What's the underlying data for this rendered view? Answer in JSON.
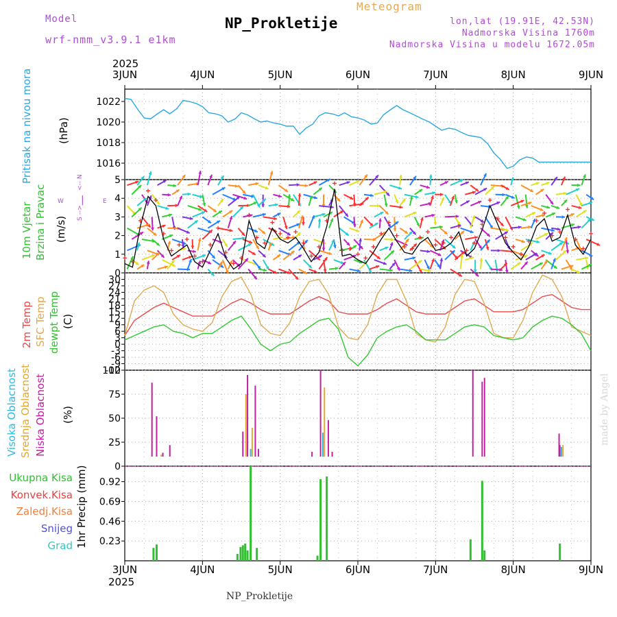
{
  "header": {
    "model_label": "Model",
    "model_name": "wrf-nmm_v3.9.1  e1km",
    "product": "Meteogram",
    "station": "NP_Prokletije",
    "lonlat": "lon,lat (19.91E, 42.53N)",
    "elevation": "Nadmorska Visina 1760m",
    "model_elevation": "Nadmorska Visina u modelu 1672.05m",
    "year_top": "2025",
    "year_bottom": "2025",
    "footer_station": "NP_Prokletije",
    "watermark": "made by Angel"
  },
  "colors": {
    "pressure": "#2aa8e0",
    "temp2m": "#e84a4a",
    "sfc_temp": "#e0a850",
    "dewpt": "#30c830",
    "high_cloud": "#30b8e0",
    "mid_cloud": "#e0a830",
    "low_cloud": "#c020a0",
    "total_precip": "#30c030",
    "conv_precip": "#e84040",
    "frozen": "#f08040",
    "snow": "#5050e0",
    "hail": "#30c8c0",
    "wind_speed": "#000000",
    "gust_marker": "#e83030"
  },
  "chart_data": [
    {
      "type": "line",
      "panel": "pressure",
      "ylabel_parts": [
        "Pritisak na nivou mora",
        "(hPa)"
      ],
      "x_ticks": [
        "3JUN",
        "4JUN",
        "5JUN",
        "6JUN",
        "7JUN",
        "8JUN",
        "9JUN"
      ],
      "xlim_days": [
        0,
        6
      ],
      "ylim": [
        1014.4,
        1023.2
      ],
      "yticks": [
        1016,
        1018,
        1020,
        1022
      ],
      "series": [
        {
          "name": "",
          "x": [
            0,
            0.08,
            0.17,
            0.25,
            0.33,
            0.42,
            0.5,
            0.58,
            0.67,
            0.75,
            0.83,
            0.92,
            1.0,
            1.08,
            1.17,
            1.25,
            1.33,
            1.42,
            1.5,
            1.58,
            1.67,
            1.75,
            1.83,
            1.92,
            2.0,
            2.08,
            2.17,
            2.25,
            2.33,
            2.42,
            2.5,
            2.58,
            2.67,
            2.75,
            2.83,
            2.92,
            3.0,
            3.08,
            3.17,
            3.25,
            3.33,
            3.42,
            3.5,
            3.58,
            3.67,
            3.75,
            3.83,
            3.92,
            4.0,
            4.08,
            4.17,
            4.25,
            4.33,
            4.42,
            4.5,
            4.58,
            4.67,
            4.75,
            4.83,
            4.92,
            5.0,
            5.08,
            5.17,
            5.25,
            5.33,
            5.42,
            5.5,
            5.58,
            5.67,
            5.75,
            5.83,
            5.92,
            6.0
          ],
          "y": [
            1022.3,
            1022.2,
            1021.2,
            1020.4,
            1020.3,
            1020.8,
            1021.2,
            1020.8,
            1021.3,
            1022.1,
            1022.0,
            1021.8,
            1021.5,
            1020.9,
            1020.8,
            1020.6,
            1020.0,
            1020.3,
            1020.9,
            1020.7,
            1020.3,
            1020.0,
            1020.1,
            1019.9,
            1019.8,
            1019.6,
            1019.6,
            1018.8,
            1019.4,
            1019.8,
            1020.6,
            1020.9,
            1020.8,
            1020.6,
            1020.9,
            1020.5,
            1020.4,
            1020.2,
            1019.8,
            1019.9,
            1020.7,
            1021.2,
            1021.6,
            1021.2,
            1020.9,
            1020.6,
            1020.3,
            1020.0,
            1019.6,
            1019.2,
            1019.4,
            1019.3,
            1019.0,
            1018.7,
            1018.6,
            1018.5,
            1017.9,
            1017.0,
            1016.4,
            1015.5,
            1015.7,
            1016.3,
            1016.6,
            1016.5,
            1016.1,
            1016.1,
            1016.1,
            1016.1,
            1016.1,
            1016.1,
            1016.1,
            1016.1,
            1016.1
          ]
        }
      ]
    },
    {
      "type": "line",
      "panel": "wind",
      "ylabel_parts": [
        "10m Vjetar",
        "Brzina i Pravac",
        "(m/s)"
      ],
      "compass": {
        "w": "W",
        "e": "E",
        "n": "<-- N",
        "s": "S -->",
        "pipe": "|"
      },
      "ylim": [
        0,
        5
      ],
      "yticks": [
        0,
        1,
        2,
        3,
        4,
        5
      ],
      "series": [
        {
          "name": "",
          "x": [
            0,
            0.1,
            0.2,
            0.3,
            0.4,
            0.5,
            0.6,
            0.7,
            0.8,
            0.9,
            1.0,
            1.1,
            1.2,
            1.3,
            1.4,
            1.5,
            1.6,
            1.7,
            1.8,
            1.9,
            2.0,
            2.1,
            2.2,
            2.3,
            2.4,
            2.5,
            2.6,
            2.7,
            2.8,
            2.9,
            3.0,
            3.1,
            3.2,
            3.3,
            3.4,
            3.5,
            3.6,
            3.7,
            3.8,
            3.9,
            4.0,
            4.1,
            4.2,
            4.3,
            4.4,
            4.5,
            4.6,
            4.7,
            4.8,
            4.9,
            5.0,
            5.1,
            5.2,
            5.3,
            5.4,
            5.5,
            5.6,
            5.7,
            5.8,
            5.9,
            6.0
          ],
          "y": [
            0.5,
            0.3,
            2.5,
            4.1,
            3.6,
            1.8,
            0.9,
            1.2,
            1.5,
            0.6,
            0.3,
            1.2,
            2.1,
            0.8,
            0.2,
            0.5,
            2.8,
            1.6,
            1.3,
            2.4,
            1.8,
            1.6,
            1.9,
            1.3,
            0.6,
            1.1,
            2.5,
            4.5,
            0.9,
            1.0,
            0.7,
            0.5,
            1.1,
            1.8,
            2.4,
            1.7,
            1.1,
            1.0,
            1.6,
            1.9,
            1.2,
            1.3,
            1.6,
            2.2,
            0.9,
            1.3,
            2.3,
            3.6,
            2.6,
            1.6,
            1.1,
            0.7,
            1.4,
            2.5,
            2.9,
            1.7,
            1.9,
            3.1,
            1.5,
            1.0,
            1.8
          ]
        }
      ]
    },
    {
      "type": "line",
      "panel": "temperature",
      "ylabel_parts": [
        "2m Temp",
        "SFC Temp",
        "dewpt Temp",
        "(C)"
      ],
      "ylim": [
        -12,
        33
      ],
      "yticks": [
        -12,
        -9,
        -6,
        -3,
        0,
        3,
        6,
        9,
        12,
        15,
        18,
        21,
        24,
        27,
        30
      ],
      "x": [
        0,
        0.125,
        0.25,
        0.375,
        0.5,
        0.625,
        0.75,
        0.875,
        1.0,
        1.125,
        1.25,
        1.375,
        1.5,
        1.625,
        1.75,
        1.875,
        2.0,
        2.125,
        2.25,
        2.375,
        2.5,
        2.625,
        2.75,
        2.875,
        3.0,
        3.125,
        3.25,
        3.375,
        3.5,
        3.625,
        3.75,
        3.875,
        4.0,
        4.125,
        4.25,
        4.375,
        4.5,
        4.625,
        4.75,
        4.875,
        5.0,
        5.125,
        5.25,
        5.375,
        5.5,
        5.625,
        5.75,
        5.875,
        6.0
      ],
      "series": [
        {
          "name": "2m Temp",
          "values": [
            4,
            11,
            14,
            17,
            19,
            17,
            15,
            13,
            13,
            13,
            16,
            19,
            21,
            19,
            16,
            14,
            14,
            14,
            17,
            20,
            22,
            20,
            15,
            14,
            14,
            14,
            16,
            19,
            21,
            18,
            15,
            14,
            14,
            14,
            17,
            20,
            21,
            18,
            15,
            15,
            15,
            16,
            19,
            22,
            23,
            20,
            17,
            16,
            16
          ]
        },
        {
          "name": "SFC Temp",
          "values": [
            4,
            20,
            25,
            27,
            24,
            14,
            9,
            7,
            6,
            10,
            22,
            29,
            31,
            23,
            9,
            5,
            4,
            10,
            22,
            29,
            30,
            23,
            8,
            3,
            2,
            9,
            23,
            30,
            30,
            20,
            5,
            2,
            1,
            8,
            23,
            30,
            29,
            19,
            5,
            3,
            3,
            11,
            24,
            32,
            30,
            22,
            8,
            6,
            4
          ]
        },
        {
          "name": "dewpt Temp",
          "values": [
            2,
            4,
            6,
            8,
            9,
            6,
            5,
            3,
            5,
            5,
            8,
            11,
            13,
            7,
            0,
            -3,
            0,
            1,
            5,
            8,
            11,
            12,
            7,
            -6,
            -10,
            -5,
            3,
            6,
            8,
            9,
            6,
            2,
            2,
            2,
            5,
            8,
            9,
            8,
            4,
            3,
            2,
            3,
            8,
            11,
            13,
            12,
            9,
            5,
            -3
          ]
        }
      ]
    },
    {
      "type": "bar",
      "panel": "cloud",
      "ylabel_parts": [
        "Visoka Oblacnost",
        "Srednja Oblacnost",
        "Niska Oblacnost",
        "(%)"
      ],
      "ylim": [
        0,
        100
      ],
      "yticks": [
        0,
        25,
        50,
        75,
        100
      ],
      "series": [
        {
          "name": "Visoka Oblacnost",
          "x": [
            0.37,
            0.45,
            0.55,
            1.53,
            1.62,
            2.45,
            2.55,
            2.6,
            5.62
          ],
          "values": [
            3,
            10,
            5,
            5,
            18,
            5,
            35,
            8,
            20
          ]
        },
        {
          "name": "Srednja Oblacnost",
          "x": [
            0.39,
            0.47,
            0.52,
            1.5,
            1.56,
            1.64,
            2.5,
            2.57,
            3.7,
            5.64
          ],
          "values": [
            8,
            12,
            10,
            6,
            75,
            40,
            5,
            82,
            5,
            22
          ]
        },
        {
          "name": "Niska Oblacnost",
          "x": [
            0.35,
            0.41,
            0.49,
            0.58,
            1.45,
            1.52,
            1.58,
            1.68,
            1.72,
            2.41,
            2.52,
            2.62,
            2.67,
            3.66,
            4.45,
            4.48,
            4.6,
            4.63,
            5.59,
            5.6
          ],
          "values": [
            87,
            52,
            14,
            22,
            10,
            36,
            95,
            84,
            18,
            15,
            100,
            48,
            15,
            5,
            8,
            100,
            88,
            92,
            34,
            22
          ]
        }
      ]
    },
    {
      "type": "bar",
      "panel": "precip",
      "ylabel_parts": [
        "1hr Precip (mm)"
      ],
      "legend": [
        "Ukupna Kisa",
        "Konvek.Kisa",
        "Zaledj.Kisa",
        "Snijeg",
        "Grad"
      ],
      "ylim": [
        0,
        1.1
      ],
      "yticks": [
        0.23,
        0.46,
        0.69,
        0.92
      ],
      "series": [
        {
          "name": "Ukupna Kisa",
          "x": [
            0.37,
            0.41,
            1.45,
            1.49,
            1.52,
            1.55,
            1.58,
            1.62,
            1.7,
            2.48,
            2.52,
            2.6,
            4.45,
            4.6,
            4.63,
            5.6
          ],
          "values": [
            0.15,
            0.19,
            0.08,
            0.16,
            0.18,
            0.2,
            0.12,
            1.1,
            0.15,
            0.06,
            0.95,
            0.98,
            0.25,
            0.93,
            0.12,
            0.2
          ]
        }
      ]
    }
  ]
}
